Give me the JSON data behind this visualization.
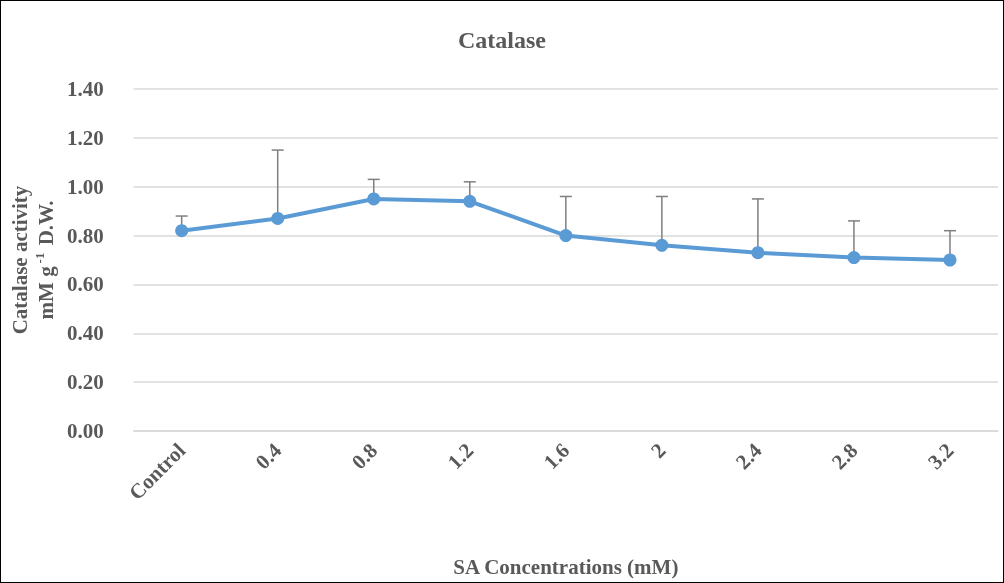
{
  "chart_data": {
    "type": "line",
    "title": "Catalase",
    "xlabel": "SA Concentrations (mM)",
    "ylabel": "Catalase activity\nmM g$^{-1}$ D.W.",
    "categories": [
      "Control",
      "0.4",
      "0.8",
      "1.2",
      "1.6",
      "2",
      "2.4",
      "2.8",
      "3.2"
    ],
    "series": [
      {
        "color": "#5b9bd5",
        "values": [
          0.82,
          0.87,
          0.95,
          0.94,
          0.8,
          0.76,
          0.73,
          0.71,
          0.7
        ],
        "errors": [
          [
            0.82,
            0.88
          ],
          [
            0.87,
            1.15
          ],
          [
            0.95,
            1.03
          ],
          [
            0.94,
            1.02
          ],
          [
            0.8,
            0.96
          ],
          [
            0.76,
            0.96
          ],
          [
            0.73,
            0.95
          ],
          [
            0.71,
            0.86
          ],
          [
            0.7,
            0.82
          ]
        ]
      }
    ],
    "ylim": [
      0,
      1.4
    ],
    "yticks": [
      {
        "value": 0,
        "label": "0.00"
      },
      {
        "value": 0.2,
        "label": "0.20"
      },
      {
        "value": 0.4,
        "label": "0.40"
      },
      {
        "value": 0.6,
        "label": "0.60"
      },
      {
        "value": 0.8,
        "label": "0.80"
      },
      {
        "value": 1.0,
        "label": "1.00"
      },
      {
        "value": 1.2,
        "label": "1.20"
      },
      {
        "value": 1.4,
        "label": "1.40"
      }
    ],
    "grid": "y",
    "marker": "circle",
    "line_style": "solid"
  }
}
